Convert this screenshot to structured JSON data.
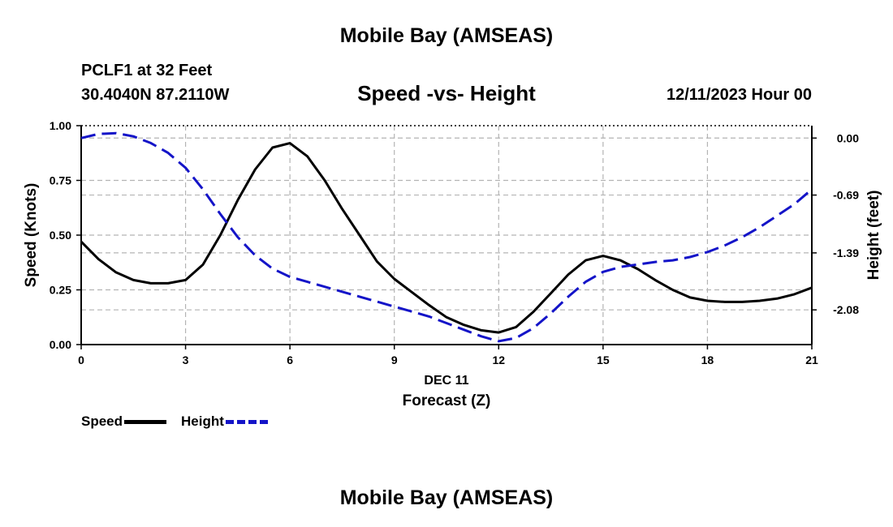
{
  "header": {
    "title": "Mobile Bay (AMSEAS)",
    "station": "PCLF1 at 32 Feet",
    "coords": "30.4040N  87.2110W",
    "subtitle": "Speed -vs- Height",
    "datetime": "12/11/2023 Hour 00"
  },
  "footer": {
    "title": "Mobile Bay (AMSEAS)"
  },
  "legend": {
    "speed_label": "Speed",
    "height_label": "Height"
  },
  "colors": {
    "speed": "#000000",
    "height": "#1414c8",
    "grid": "#b4b4b4"
  },
  "chart_data": {
    "type": "line",
    "title": "Speed -vs- Height",
    "xlabel": "Forecast (Z)",
    "xlabel_date": "DEC 11",
    "ylabel_left": "Speed (Knots)",
    "ylabel_right": "Height (feet)",
    "xlim": [
      0,
      21
    ],
    "ylim_left": [
      0,
      1.0
    ],
    "ylim_right": [
      -2.5,
      0.15
    ],
    "x_ticks": [
      "0",
      "3",
      "6",
      "9",
      "12",
      "15",
      "18",
      "21"
    ],
    "y_left_ticks": [
      "0.00",
      "0.25",
      "0.50",
      "0.75",
      "1.00"
    ],
    "y_right_ticks": [
      "0.00",
      "-0.69",
      "-1.39",
      "-2.08"
    ],
    "grid": true,
    "legend_position": "bottom-left",
    "series": [
      {
        "name": "Speed",
        "axis": "left",
        "style": "solid",
        "x": [
          0,
          0.5,
          1,
          1.5,
          2,
          2.5,
          3,
          3.5,
          4,
          4.5,
          5,
          5.5,
          6,
          6.5,
          7,
          7.5,
          8,
          8.5,
          9,
          9.5,
          10,
          10.5,
          11,
          11.5,
          12,
          12.5,
          13,
          13.5,
          14,
          14.5,
          15,
          15.5,
          16,
          16.5,
          17,
          17.5,
          18,
          18.5,
          19,
          19.5,
          20,
          20.5,
          21
        ],
        "values": [
          0.47,
          0.39,
          0.33,
          0.295,
          0.28,
          0.28,
          0.295,
          0.365,
          0.5,
          0.66,
          0.8,
          0.9,
          0.92,
          0.86,
          0.75,
          0.62,
          0.5,
          0.38,
          0.3,
          0.24,
          0.18,
          0.125,
          0.09,
          0.065,
          0.055,
          0.08,
          0.15,
          0.235,
          0.32,
          0.385,
          0.405,
          0.385,
          0.345,
          0.295,
          0.25,
          0.215,
          0.2,
          0.195,
          0.195,
          0.2,
          0.21,
          0.23,
          0.26
        ]
      },
      {
        "name": "Height",
        "axis": "right",
        "style": "dashed",
        "x": [
          0,
          0.5,
          1,
          1.5,
          2,
          2.5,
          3,
          3.5,
          4,
          4.5,
          5,
          5.5,
          6,
          6.5,
          7,
          7.5,
          8,
          8.5,
          9,
          9.5,
          10,
          10.5,
          11,
          11.5,
          12,
          12.5,
          13,
          13.5,
          14,
          14.5,
          15,
          15.5,
          16,
          16.5,
          17,
          17.5,
          18,
          18.5,
          19,
          19.5,
          20,
          20.5,
          21
        ],
        "values": [
          0.0,
          0.05,
          0.06,
          0.02,
          -0.06,
          -0.18,
          -0.36,
          -0.62,
          -0.92,
          -1.2,
          -1.42,
          -1.58,
          -1.68,
          -1.74,
          -1.8,
          -1.86,
          -1.92,
          -1.98,
          -2.04,
          -2.1,
          -2.16,
          -2.24,
          -2.32,
          -2.4,
          -2.46,
          -2.42,
          -2.3,
          -2.12,
          -1.92,
          -1.74,
          -1.62,
          -1.56,
          -1.53,
          -1.5,
          -1.48,
          -1.44,
          -1.38,
          -1.3,
          -1.2,
          -1.08,
          -0.94,
          -0.8,
          -0.62
        ]
      }
    ]
  }
}
